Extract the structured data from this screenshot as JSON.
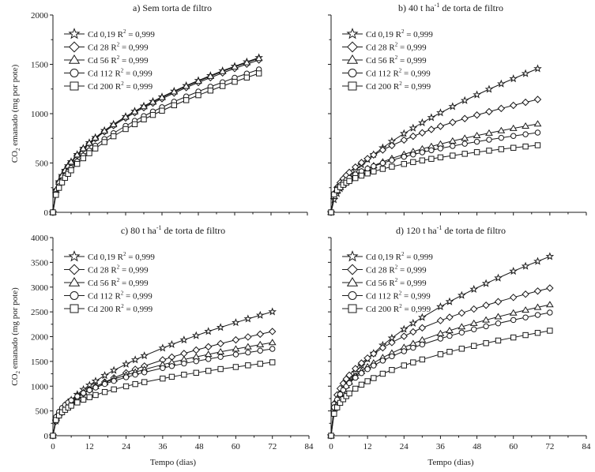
{
  "figure": {
    "xlabel": "Tempo (dias)",
    "ylabel_main": "CO",
    "ylabel_sub": "2",
    "ylabel_rest": " emanado (mg por pote)",
    "r2_label": "R",
    "r2_sup": "2"
  },
  "chart_data": [
    {
      "type": "line",
      "panel": "a",
      "title": "a) Sem torta de filtro",
      "title_parts": [
        "a) Sem torta de filtro",
        "",
        ""
      ],
      "xlabel": "Tempo (dias)",
      "ylabel": "CO2 emanado (mg por pote)",
      "xlim": [
        0,
        84
      ],
      "ylim": [
        0,
        2000
      ],
      "xticks": [
        0,
        12,
        24,
        36,
        48,
        60,
        72,
        84
      ],
      "yticks": [
        0,
        500,
        1000,
        1500,
        2000
      ],
      "show_xticklabels": false,
      "show_yticklabels": true,
      "legend": "top-left",
      "x": [
        0,
        1,
        2,
        3,
        4,
        5,
        6,
        8,
        10,
        12,
        14,
        17,
        20,
        24,
        27,
        30,
        33,
        36,
        40,
        44,
        48,
        52,
        56,
        60,
        64,
        68
      ],
      "series": [
        {
          "name": "Cd 0,19",
          "r2": "= 0,999",
          "marker": "star",
          "values": [
            0,
            225,
            310,
            373,
            426,
            472,
            513,
            586,
            649,
            706,
            758,
            829,
            893,
            971,
            1025,
            1077,
            1124,
            1170,
            1228,
            1284,
            1336,
            1386,
            1435,
            1480,
            1525,
            1568
          ]
        },
        {
          "name": "Cd 28",
          "r2": "= 0,999",
          "marker": "diamond",
          "values": [
            0,
            222,
            305,
            367,
            420,
            465,
            505,
            577,
            639,
            695,
            747,
            817,
            880,
            956,
            1010,
            1061,
            1107,
            1152,
            1209,
            1265,
            1316,
            1365,
            1413,
            1458,
            1502,
            1544
          ]
        },
        {
          "name": "Cd 56",
          "r2": "= 0,999",
          "marker": "triangle",
          "values": [
            0,
            224,
            308,
            371,
            424,
            470,
            510,
            583,
            646,
            702,
            754,
            825,
            889,
            966,
            1020,
            1072,
            1118,
            1164,
            1222,
            1278,
            1329,
            1379,
            1428,
            1473,
            1517,
            1560
          ]
        },
        {
          "name": "Cd 112",
          "r2": "= 0,999",
          "marker": "circle",
          "values": [
            0,
            188,
            264,
            321,
            369,
            410,
            448,
            515,
            574,
            626,
            675,
            742,
            802,
            876,
            927,
            975,
            1021,
            1065,
            1121,
            1174,
            1224,
            1273,
            1318,
            1364,
            1406,
            1448
          ]
        },
        {
          "name": "Cd 200",
          "r2": "= 0,999",
          "marker": "square",
          "values": [
            0,
            177,
            248,
            303,
            349,
            390,
            426,
            491,
            548,
            599,
            647,
            712,
            771,
            844,
            893,
            942,
            987,
            1030,
            1085,
            1137,
            1187,
            1234,
            1280,
            1323,
            1366,
            1408
          ]
        }
      ]
    },
    {
      "type": "line",
      "panel": "b",
      "title": "b) 40 t ha-1 de torta de filtro",
      "title_parts": [
        "b) 40 t ha",
        "-1",
        " de torta de filtro"
      ],
      "xlabel": "Tempo (dias)",
      "ylabel": "",
      "xlim": [
        0,
        84
      ],
      "ylim": [
        0,
        2000
      ],
      "xticks": [
        0,
        12,
        24,
        36,
        48,
        60,
        72,
        84
      ],
      "yticks": [
        0,
        500,
        1000,
        1500,
        2000
      ],
      "show_xticklabels": false,
      "show_yticklabels": false,
      "legend": "top-left",
      "x": [
        0,
        1,
        2,
        3,
        4,
        5,
        6,
        8,
        10,
        12,
        14,
        17,
        20,
        24,
        27,
        30,
        33,
        36,
        40,
        44,
        48,
        52,
        56,
        60,
        64,
        68
      ],
      "series": [
        {
          "name": "Cd 0,19",
          "r2": "= 0,999",
          "marker": "star",
          "values": [
            0,
            128,
            190,
            240,
            284,
            323,
            359,
            423,
            482,
            535,
            585,
            654,
            719,
            798,
            854,
            908,
            960,
            1009,
            1072,
            1133,
            1191,
            1247,
            1302,
            1354,
            1406,
            1456
          ]
        },
        {
          "name": "Cd 28",
          "r2": "= 0,999",
          "marker": "diamond",
          "values": [
            0,
            188,
            253,
            301,
            340,
            374,
            405,
            458,
            504,
            544,
            582,
            632,
            677,
            733,
            771,
            806,
            840,
            872,
            912,
            950,
            986,
            1020,
            1053,
            1084,
            1115,
            1144
          ]
        },
        {
          "name": "Cd 56",
          "r2": "= 0,999",
          "marker": "triangle",
          "values": [
            0,
            162,
            215,
            253,
            285,
            311,
            335,
            377,
            412,
            444,
            473,
            511,
            546,
            588,
            616,
            643,
            668,
            692,
            723,
            751,
            778,
            803,
            828,
            851,
            874,
            896
          ]
        },
        {
          "name": "Cd 112",
          "r2": "= 0,999",
          "marker": "circle",
          "values": [
            0,
            187,
            238,
            274,
            302,
            326,
            348,
            384,
            416,
            443,
            467,
            499,
            528,
            563,
            586,
            608,
            629,
            648,
            672,
            695,
            716,
            736,
            755,
            774,
            791,
            808
          ]
        },
        {
          "name": "Cd 200",
          "r2": "= 0,999",
          "marker": "square",
          "values": [
            0,
            181,
            225,
            255,
            279,
            300,
            317,
            347,
            372,
            394,
            414,
            440,
            463,
            490,
            509,
            526,
            542,
            557,
            575,
            593,
            610,
            625,
            640,
            654,
            667,
            680
          ]
        }
      ]
    },
    {
      "type": "line",
      "panel": "c",
      "title": "c) 80 t ha-1 de torta de filtro",
      "title_parts": [
        "c) 80 t ha",
        "-1",
        " de torta de filtro"
      ],
      "xlabel": "Tempo (dias)",
      "ylabel": "CO2 emanado (mg por pote)",
      "xlim": [
        0,
        84
      ],
      "ylim": [
        0,
        4000
      ],
      "xticks": [
        0,
        12,
        24,
        36,
        48,
        60,
        72,
        84
      ],
      "yticks": [
        0,
        500,
        1000,
        1500,
        2000,
        2500,
        3000,
        3500,
        4000
      ],
      "show_xticklabels": true,
      "show_yticklabels": true,
      "legend": "top-left",
      "x": [
        0,
        1,
        2,
        3,
        4,
        5,
        6,
        8,
        10,
        12,
        14,
        17,
        20,
        24,
        27,
        30,
        36,
        39,
        43,
        47,
        51,
        55,
        60,
        64,
        68,
        72
      ],
      "series": [
        {
          "name": "Cd 0,19",
          "r2": "= 0,999",
          "marker": "star",
          "values": [
            0,
            295,
            417,
            511,
            590,
            659,
            722,
            834,
            933,
            1021,
            1103,
            1216,
            1319,
            1445,
            1532,
            1615,
            1769,
            1841,
            1934,
            2021,
            2106,
            2187,
            2284,
            2359,
            2432,
            2502
          ]
        },
        {
          "name": "Cd 28",
          "r2": "= 0,999",
          "marker": "diamond",
          "values": [
            0,
            294,
            405,
            488,
            557,
            617,
            671,
            766,
            849,
            923,
            991,
            1083,
            1167,
            1269,
            1340,
            1406,
            1530,
            1587,
            1660,
            1729,
            1795,
            1859,
            1934,
            1993,
            2050,
            2104
          ]
        },
        {
          "name": "Cd 56",
          "r2": "= 0,999",
          "marker": "triangle",
          "values": [
            0,
            355,
            465,
            545,
            609,
            665,
            713,
            798,
            870,
            934,
            992,
            1071,
            1141,
            1224,
            1282,
            1337,
            1435,
            1480,
            1538,
            1591,
            1642,
            1693,
            1751,
            1795,
            1839,
            1880
          ]
        },
        {
          "name": "Cd 112",
          "r2": "= 0,999",
          "marker": "circle",
          "values": [
            0,
            376,
            482,
            559,
            620,
            671,
            716,
            795,
            861,
            920,
            972,
            1043,
            1105,
            1180,
            1232,
            1279,
            1366,
            1406,
            1457,
            1503,
            1548,
            1591,
            1641,
            1680,
            1717,
            1753
          ]
        },
        {
          "name": "Cd 200",
          "r2": "= 0,999",
          "marker": "square",
          "values": [
            0,
            317,
            408,
            473,
            523,
            568,
            606,
            671,
            728,
            778,
            821,
            882,
            935,
            997,
            1042,
            1082,
            1154,
            1189,
            1232,
            1270,
            1309,
            1346,
            1387,
            1421,
            1452,
            1482
          ]
        }
      ]
    },
    {
      "type": "line",
      "panel": "d",
      "title": "d) 120 t ha-1 de torta de filtro",
      "title_parts": [
        "d) 120 t ha",
        "-1",
        " de torta de filtro"
      ],
      "xlabel": "Tempo (dias)",
      "ylabel": "",
      "xlim": [
        0,
        84
      ],
      "ylim": [
        0,
        4000
      ],
      "xticks": [
        0,
        12,
        24,
        36,
        48,
        60,
        72,
        84
      ],
      "yticks": [
        0,
        500,
        1000,
        1500,
        2000,
        2500,
        3000,
        3500,
        4000
      ],
      "show_xticklabels": true,
      "show_yticklabels": false,
      "legend": "top-left",
      "x": [
        0,
        1,
        2,
        3,
        4,
        5,
        6,
        8,
        10,
        12,
        14,
        17,
        20,
        24,
        27,
        30,
        36,
        39,
        43,
        47,
        51,
        55,
        60,
        64,
        68,
        72
      ],
      "series": [
        {
          "name": "Cd 0,19",
          "r2": "= 0,999",
          "marker": "star",
          "values": [
            0,
            477,
            662,
            803,
            919,
            1024,
            1114,
            1277,
            1418,
            1548,
            1664,
            1827,
            1972,
            2149,
            2272,
            2388,
            2605,
            2706,
            2833,
            2956,
            3072,
            3184,
            3321,
            3423,
            3520,
            3618
          ]
        },
        {
          "name": "Cd 28",
          "r2": "= 0,999",
          "marker": "diamond",
          "values": [
            0,
            642,
            823,
            953,
            1056,
            1144,
            1221,
            1354,
            1466,
            1567,
            1655,
            1775,
            1881,
            2008,
            2096,
            2177,
            2324,
            2391,
            2477,
            2557,
            2633,
            2705,
            2792,
            2857,
            2920,
            2980
          ]
        },
        {
          "name": "Cd 56",
          "r2": "= 0,999",
          "marker": "triangle",
          "values": [
            0,
            570,
            730,
            846,
            937,
            1015,
            1084,
            1202,
            1301,
            1391,
            1469,
            1576,
            1669,
            1783,
            1860,
            1933,
            2063,
            2122,
            2198,
            2269,
            2336,
            2401,
            2478,
            2536,
            2592,
            2645
          ]
        },
        {
          "name": "Cd 112",
          "r2": "= 0,999",
          "marker": "circle",
          "values": [
            0,
            573,
            727,
            836,
            922,
            996,
            1061,
            1170,
            1263,
            1344,
            1417,
            1516,
            1603,
            1705,
            1776,
            1842,
            1960,
            2015,
            2083,
            2148,
            2209,
            2268,
            2336,
            2388,
            2438,
            2486
          ]
        },
        {
          "name": "Cd 200",
          "r2": "= 0,999",
          "marker": "square",
          "values": [
            0,
            443,
            571,
            663,
            736,
            799,
            853,
            949,
            1030,
            1100,
            1163,
            1251,
            1327,
            1418,
            1480,
            1539,
            1645,
            1694,
            1756,
            1813,
            1868,
            1921,
            1983,
            2031,
            2076,
            2120
          ]
        }
      ]
    }
  ]
}
